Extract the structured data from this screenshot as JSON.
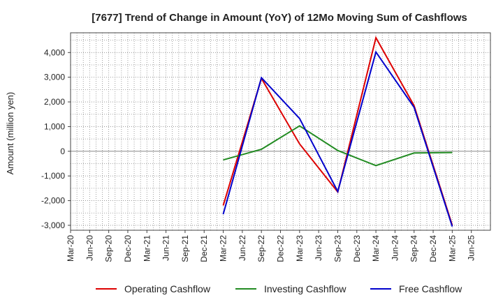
{
  "chart_data": {
    "type": "line",
    "title": "[7677]  Trend of Change in Amount (YoY) of 12Mo Moving Sum of Cashflows",
    "xlabel": "",
    "ylabel": "Amount (million yen)",
    "ylim": [
      -3200,
      4800
    ],
    "yticks": [
      -3000,
      -2000,
      -1000,
      0,
      1000,
      2000,
      3000,
      4000
    ],
    "ytick_labels": [
      "-3,000",
      "-2,000",
      "-1,000",
      "0",
      "1,000",
      "2,000",
      "3,000",
      "4,000"
    ],
    "categories": [
      "Mar-20",
      "Jun-20",
      "Sep-20",
      "Dec-20",
      "Mar-21",
      "Jun-21",
      "Sep-21",
      "Dec-21",
      "Mar-22",
      "Jun-22",
      "Sep-22",
      "Dec-22",
      "Mar-23",
      "Jun-23",
      "Sep-23",
      "Dec-23",
      "Mar-24",
      "Jun-24",
      "Sep-24",
      "Dec-24",
      "Mar-25",
      "Jun-25"
    ],
    "grid": true,
    "legend_position": "bottom",
    "series": [
      {
        "name": "Operating Cashflow",
        "color": "#dd0000",
        "values": [
          null,
          null,
          null,
          null,
          null,
          null,
          null,
          null,
          -2200,
          null,
          2950,
          null,
          300,
          null,
          -1650,
          null,
          4600,
          null,
          1850,
          null,
          -3000,
          null
        ]
      },
      {
        "name": "Investing Cashflow",
        "color": "#228b22",
        "values": [
          null,
          null,
          null,
          null,
          null,
          null,
          null,
          null,
          -350,
          null,
          80,
          null,
          1030,
          null,
          30,
          null,
          -580,
          null,
          -70,
          null,
          -50,
          null
        ]
      },
      {
        "name": "Free Cashflow",
        "color": "#0000cc",
        "values": [
          null,
          null,
          null,
          null,
          null,
          null,
          null,
          null,
          -2550,
          null,
          2980,
          null,
          1330,
          null,
          -1630,
          null,
          4020,
          null,
          1780,
          null,
          -3050,
          null
        ]
      }
    ]
  }
}
